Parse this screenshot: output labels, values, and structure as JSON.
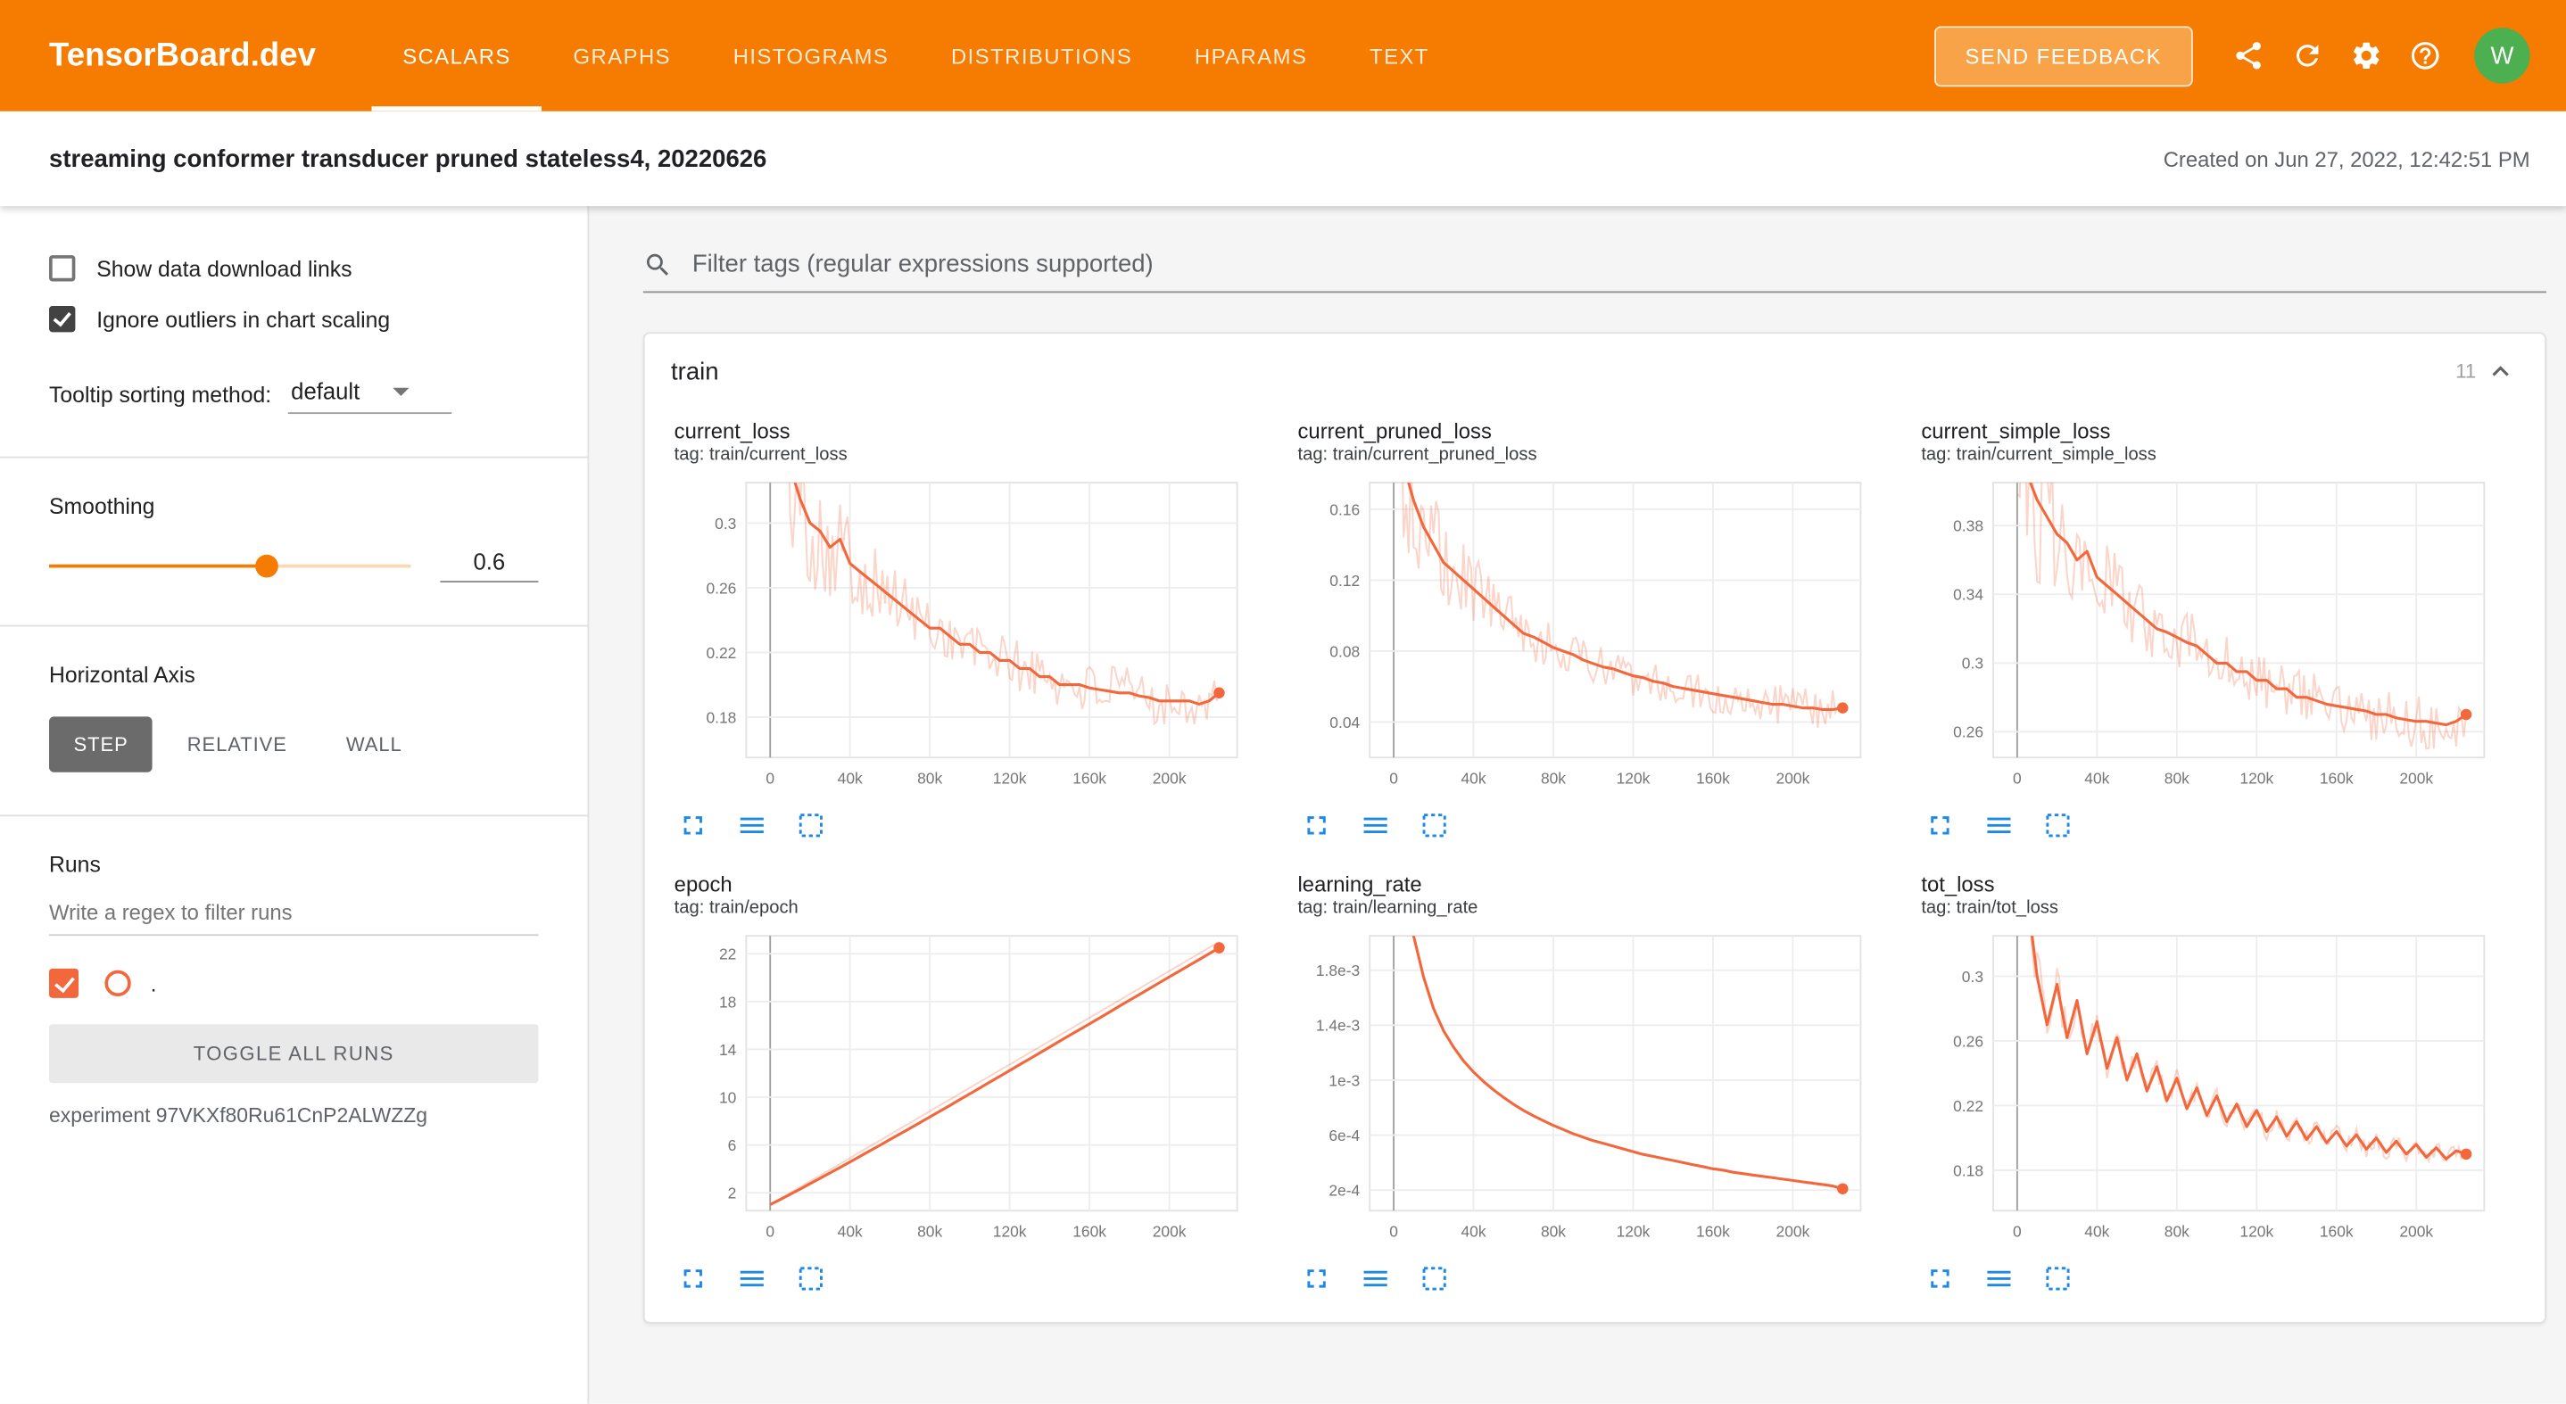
{
  "colors": {
    "header_bg": "#f57c00",
    "run_color": "#f2683c",
    "icon_blue": "#1e88e5",
    "avatar_bg": "#4caf50"
  },
  "header": {
    "brand": "TensorBoard.dev",
    "tabs": [
      {
        "label": "SCALARS",
        "active": true
      },
      {
        "label": "GRAPHS"
      },
      {
        "label": "HISTOGRAMS"
      },
      {
        "label": "DISTRIBUTIONS"
      },
      {
        "label": "HPARAMS"
      },
      {
        "label": "TEXT"
      }
    ],
    "send_feedback_label": "SEND FEEDBACK",
    "avatar_letter": "W"
  },
  "experiment_bar": {
    "title": "streaming conformer transducer pruned stateless4, 20220626",
    "created": "Created on Jun 27, 2022, 12:42:51 PM"
  },
  "sidebar": {
    "show_download_label": "Show data download links",
    "ignore_outliers_label": "Ignore outliers in chart scaling",
    "tooltip_label": "Tooltip sorting method:",
    "tooltip_value": "default",
    "smoothing_label": "Smoothing",
    "smoothing_value": "0.6",
    "horizontal_axis_label": "Horizontal Axis",
    "axis_options": [
      {
        "label": "STEP",
        "active": true
      },
      {
        "label": "RELATIVE"
      },
      {
        "label": "WALL"
      }
    ],
    "runs_label": "Runs",
    "runs_filter_placeholder": "Write a regex to filter runs",
    "run_name": ".",
    "toggle_all_label": "TOGGLE ALL RUNS",
    "experiment_id": "experiment 97VKXf80Ru61CnP2ALWZZg"
  },
  "main": {
    "filter_placeholder": "Filter tags (regular expressions supported)",
    "group_title": "train",
    "group_count": "11"
  },
  "chart_data": [
    {
      "type": "line",
      "title": "current_loss",
      "tag": "tag: train/current_loss",
      "legend": [
        {
          "run": ".",
          "smoothing": 0.6
        }
      ],
      "x_start": 0,
      "x_step": 5000,
      "x_range": [
        -12000,
        234000
      ],
      "x_tick_values": [
        0,
        40000,
        80000,
        120000,
        160000,
        200000
      ],
      "x_tick_labels": [
        "0",
        "40k",
        "80k",
        "120k",
        "160k",
        "200k"
      ],
      "y_range": [
        0.155,
        0.325
      ],
      "y_ticks": [
        0.18,
        0.22,
        0.26,
        0.3
      ],
      "y_tick_labels": [
        "0.18",
        "0.22",
        "0.26",
        "0.3"
      ],
      "noise": 0.016,
      "y": [
        0.42,
        0.36,
        0.335,
        0.315,
        0.3,
        0.295,
        0.285,
        0.29,
        0.275,
        0.27,
        0.265,
        0.26,
        0.255,
        0.25,
        0.245,
        0.24,
        0.235,
        0.235,
        0.23,
        0.225,
        0.225,
        0.22,
        0.22,
        0.215,
        0.215,
        0.21,
        0.21,
        0.205,
        0.205,
        0.2,
        0.2,
        0.2,
        0.198,
        0.197,
        0.196,
        0.195,
        0.195,
        0.193,
        0.192,
        0.19,
        0.19,
        0.19,
        0.19,
        0.188,
        0.19,
        0.195
      ]
    },
    {
      "type": "line",
      "title": "current_pruned_loss",
      "tag": "tag: train/current_pruned_loss",
      "legend": [
        {
          "run": ".",
          "smoothing": 0.6
        }
      ],
      "x_start": 0,
      "x_step": 5000,
      "x_range": [
        -12000,
        234000
      ],
      "x_tick_values": [
        0,
        40000,
        80000,
        120000,
        160000,
        200000
      ],
      "x_tick_labels": [
        "0",
        "40k",
        "80k",
        "120k",
        "160k",
        "200k"
      ],
      "y_range": [
        0.02,
        0.175
      ],
      "y_ticks": [
        0.04,
        0.08,
        0.12,
        0.16
      ],
      "y_tick_labels": [
        "0.04",
        "0.08",
        "0.12",
        "0.16"
      ],
      "noise": 0.011,
      "y": [
        0.22,
        0.185,
        0.165,
        0.15,
        0.14,
        0.13,
        0.125,
        0.12,
        0.115,
        0.11,
        0.105,
        0.1,
        0.095,
        0.09,
        0.088,
        0.085,
        0.082,
        0.08,
        0.078,
        0.075,
        0.073,
        0.071,
        0.07,
        0.068,
        0.066,
        0.065,
        0.063,
        0.062,
        0.06,
        0.059,
        0.058,
        0.057,
        0.056,
        0.055,
        0.054,
        0.053,
        0.052,
        0.051,
        0.05,
        0.05,
        0.049,
        0.048,
        0.048,
        0.047,
        0.047,
        0.048
      ]
    },
    {
      "type": "line",
      "title": "current_simple_loss",
      "tag": "tag: train/current_simple_loss",
      "legend": [
        {
          "run": ".",
          "smoothing": 0.6
        }
      ],
      "x_start": 0,
      "x_step": 5000,
      "x_range": [
        -12000,
        234000
      ],
      "x_tick_values": [
        0,
        40000,
        80000,
        120000,
        160000,
        200000
      ],
      "x_tick_labels": [
        "0",
        "40k",
        "80k",
        "120k",
        "160k",
        "200k"
      ],
      "y_range": [
        0.245,
        0.405
      ],
      "y_ticks": [
        0.26,
        0.3,
        0.34,
        0.38
      ],
      "y_tick_labels": [
        "0.26",
        "0.3",
        "0.34",
        "0.38"
      ],
      "noise": 0.016,
      "y": [
        0.44,
        0.41,
        0.395,
        0.385,
        0.375,
        0.37,
        0.36,
        0.365,
        0.35,
        0.345,
        0.34,
        0.335,
        0.33,
        0.325,
        0.32,
        0.318,
        0.315,
        0.312,
        0.31,
        0.305,
        0.3,
        0.3,
        0.295,
        0.295,
        0.29,
        0.29,
        0.285,
        0.285,
        0.28,
        0.28,
        0.278,
        0.276,
        0.275,
        0.274,
        0.273,
        0.272,
        0.27,
        0.27,
        0.268,
        0.267,
        0.266,
        0.266,
        0.265,
        0.264,
        0.266,
        0.27
      ]
    },
    {
      "type": "line",
      "title": "epoch",
      "tag": "tag: train/epoch",
      "legend": [
        {
          "run": ".",
          "smoothing": 0.6
        }
      ],
      "x_start": 0,
      "x_step": 5000,
      "x_range": [
        -12000,
        234000
      ],
      "x_tick_values": [
        0,
        40000,
        80000,
        120000,
        160000,
        200000
      ],
      "x_tick_labels": [
        "0",
        "40k",
        "80k",
        "120k",
        "160k",
        "200k"
      ],
      "y_range": [
        0.5,
        23.5
      ],
      "y_ticks": [
        2,
        6,
        10,
        14,
        18,
        22
      ],
      "y_tick_labels": [
        "2",
        "6",
        "10",
        "14",
        "18",
        "22"
      ],
      "noise": 0,
      "y": [
        1.0,
        1.43,
        1.87,
        2.31,
        2.76,
        3.21,
        3.66,
        4.12,
        4.58,
        5.04,
        5.51,
        5.98,
        6.45,
        6.92,
        7.39,
        7.86,
        8.34,
        8.82,
        9.3,
        9.79,
        10.28,
        10.77,
        11.26,
        11.74,
        12.23,
        12.72,
        13.21,
        13.7,
        14.19,
        14.68,
        15.17,
        15.66,
        16.14,
        16.63,
        17.12,
        17.61,
        18.1,
        18.59,
        19.08,
        19.57,
        20.06,
        20.54,
        21.03,
        21.52,
        22.01,
        22.5
      ],
      "y_raw": [
        1.0,
        1.49,
        1.98,
        2.47,
        2.96,
        3.44,
        3.93,
        4.42,
        4.91,
        5.4,
        5.89,
        6.38,
        6.87,
        7.36,
        7.84,
        8.33,
        8.82,
        9.31,
        9.8,
        10.29,
        10.78,
        11.27,
        11.76,
        12.24,
        12.73,
        13.22,
        13.71,
        14.2,
        14.69,
        15.18,
        15.67,
        16.16,
        16.64,
        17.13,
        17.62,
        18.11,
        18.6,
        19.09,
        19.58,
        20.07,
        20.56,
        21.04,
        21.53,
        22.02,
        22.51,
        23.0
      ]
    },
    {
      "type": "line",
      "title": "learning_rate",
      "tag": "tag: train/learning_rate",
      "legend": [
        {
          "run": ".",
          "smoothing": 0.6
        }
      ],
      "x_start": 0,
      "x_step": 5000,
      "x_range": [
        -12000,
        234000
      ],
      "x_tick_values": [
        0,
        40000,
        80000,
        120000,
        160000,
        200000
      ],
      "x_tick_labels": [
        "0",
        "40k",
        "80k",
        "120k",
        "160k",
        "200k"
      ],
      "y_range": [
        5e-05,
        0.00205
      ],
      "y_ticks": [
        0.0002,
        0.0006,
        0.001,
        0.0014,
        0.0018
      ],
      "y_tick_labels": [
        "2e-4",
        "6e-4",
        "1e-3",
        "1.4e-3",
        "1.8e-3"
      ],
      "noise": 0,
      "y": [
        0.005,
        0.003,
        0.00205,
        0.00175,
        0.00152,
        0.00136,
        0.00124,
        0.00114,
        0.00106,
        0.00099,
        0.00093,
        0.000875,
        0.000825,
        0.00078,
        0.00074,
        0.000705,
        0.00067,
        0.00064,
        0.00061,
        0.000585,
        0.00056,
        0.00054,
        0.00052,
        0.0005,
        0.00048,
        0.00046,
        0.000445,
        0.00043,
        0.000415,
        0.0004,
        0.000385,
        0.00037,
        0.000355,
        0.000345,
        0.00033,
        0.00032,
        0.00031,
        0.0003,
        0.00029,
        0.00028,
        0.00027,
        0.00026,
        0.00025,
        0.00024,
        0.00023,
        0.00021
      ]
    },
    {
      "type": "line",
      "title": "tot_loss",
      "tag": "tag: train/tot_loss",
      "legend": [
        {
          "run": ".",
          "smoothing": 0.6
        }
      ],
      "x_start": 0,
      "x_step": 5000,
      "x_range": [
        -12000,
        234000
      ],
      "x_tick_values": [
        0,
        40000,
        80000,
        120000,
        160000,
        200000
      ],
      "x_tick_labels": [
        "0",
        "40k",
        "80k",
        "120k",
        "160k",
        "200k"
      ],
      "y_range": [
        0.155,
        0.325
      ],
      "y_ticks": [
        0.18,
        0.22,
        0.26,
        0.3
      ],
      "y_tick_labels": [
        "0.18",
        "0.22",
        "0.26",
        "0.3"
      ],
      "noise": 0.005,
      "y": [
        0.42,
        0.35,
        0.3,
        0.27,
        0.295,
        0.262,
        0.285,
        0.252,
        0.272,
        0.243,
        0.262,
        0.236,
        0.252,
        0.229,
        0.244,
        0.223,
        0.237,
        0.218,
        0.231,
        0.214,
        0.226,
        0.21,
        0.221,
        0.207,
        0.217,
        0.204,
        0.213,
        0.201,
        0.21,
        0.199,
        0.207,
        0.197,
        0.204,
        0.195,
        0.202,
        0.193,
        0.2,
        0.191,
        0.198,
        0.19,
        0.196,
        0.188,
        0.194,
        0.187,
        0.192,
        0.19
      ]
    }
  ]
}
